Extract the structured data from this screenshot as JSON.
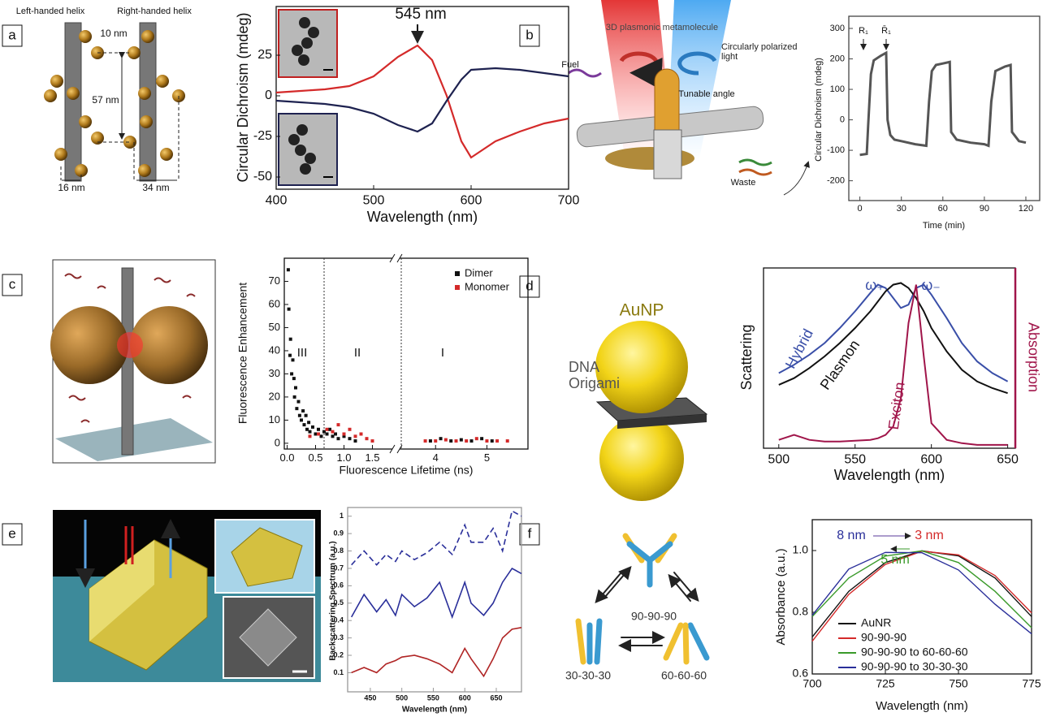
{
  "panels": [
    {
      "label": "a",
      "texts": [
        "Left-handed helix",
        "Right-handed helix",
        "10 nm",
        "57 nm",
        "16 nm",
        "34 nm"
      ]
    },
    {
      "label": "b",
      "texts": [
        "3D plasmonic metamolecule",
        "Circularly polarized light",
        "Fuel",
        "Tunable angle",
        "Waste"
      ]
    },
    {
      "label": "c",
      "texts": []
    },
    {
      "label": "d",
      "texts": [
        "AuNP",
        "DNA Origami"
      ]
    },
    {
      "label": "e",
      "texts": []
    },
    {
      "label": "f",
      "texts": [
        "90-90-90",
        "30-30-30",
        "60-60-60"
      ]
    }
  ],
  "chart_data": [
    {
      "type": "line",
      "x": [
        400,
        425,
        450,
        475,
        500,
        525,
        545,
        560,
        575,
        590,
        600,
        625,
        650,
        675,
        700
      ],
      "series": [
        {
          "color": "#d42a2a",
          "values": [
            2,
            3,
            4,
            6,
            12,
            24,
            31,
            22,
            0,
            -28,
            -38,
            -28,
            -22,
            -17,
            -14
          ]
        },
        {
          "color": "#1e2250",
          "values": [
            -3,
            -4,
            -5,
            -7,
            -11,
            -18,
            -22,
            -17,
            -3,
            10,
            16,
            17,
            16,
            14,
            12
          ]
        }
      ],
      "xlim": [
        400,
        700
      ],
      "ylim": [
        -57.5,
        55
      ],
      "xticks": [
        400,
        500,
        600,
        700
      ],
      "yticks": [
        -50,
        -25,
        0,
        25
      ],
      "xlabel": "Wavelength (nm)",
      "ylabel": "Circular Dichroism (mdeg)",
      "annotations": [
        "545 nm"
      ]
    },
    {
      "type": "line",
      "x": [
        0,
        5,
        6,
        8,
        10,
        15,
        19,
        20,
        22,
        25,
        30,
        40,
        48,
        50,
        52,
        55,
        60,
        65,
        66,
        70,
        80,
        90,
        93,
        95,
        98,
        105,
        109,
        110,
        115,
        120
      ],
      "series": [
        {
          "color": "#555555",
          "values": [
            -115,
            -112,
            -20,
            150,
            195,
            210,
            220,
            0,
            -50,
            -65,
            -70,
            -80,
            -85,
            60,
            160,
            180,
            185,
            190,
            -40,
            -65,
            -75,
            -80,
            -85,
            60,
            160,
            175,
            180,
            -40,
            -70,
            -75
          ]
        }
      ],
      "xlim": [
        -8,
        130
      ],
      "ylim": [
        -265,
        340
      ],
      "xticks": [
        0,
        30,
        60,
        90,
        120
      ],
      "yticks": [
        -200,
        -100,
        0,
        100,
        200,
        300
      ],
      "xlabel": "Time (min)",
      "ylabel": "Circular Dichroism (mdeg)",
      "annotations": [
        "R₁",
        "R̄₁"
      ]
    },
    {
      "type": "scatter",
      "series": [
        {
          "name": "Dimer",
          "color": "#111111",
          "x": [
            0.02,
            0.03,
            0.05,
            0.06,
            0.08,
            0.1,
            0.12,
            0.13,
            0.15,
            0.17,
            0.2,
            0.22,
            0.25,
            0.28,
            0.3,
            0.33,
            0.35,
            0.38,
            0.4,
            0.45,
            0.5,
            0.55,
            0.6,
            0.65,
            0.7,
            0.75,
            0.8,
            0.85,
            0.9,
            1.0,
            1.1,
            1.2,
            3.9,
            4.1,
            4.3,
            4.5,
            4.7,
            4.9,
            5.1
          ],
          "values": [
            75,
            58,
            38,
            45,
            30,
            36,
            28,
            20,
            24,
            15,
            18,
            12,
            10,
            14,
            8,
            12,
            6,
            9,
            5,
            7,
            4,
            6,
            3,
            5,
            4,
            6,
            3,
            4,
            2,
            3,
            2,
            1,
            1,
            2,
            1,
            1.5,
            1,
            2,
            1
          ]
        },
        {
          "name": "Monomer",
          "color": "#d42a2a",
          "x": [
            0.4,
            0.55,
            0.7,
            0.8,
            0.9,
            1.0,
            1.1,
            1.2,
            1.3,
            1.4,
            1.5,
            3.8,
            4.0,
            4.2,
            4.4,
            4.6,
            4.8,
            5.0,
            5.2,
            5.4
          ],
          "values": [
            3,
            4,
            6,
            5,
            8,
            4,
            6,
            3,
            4,
            2,
            1,
            1,
            1,
            1.5,
            1,
            1,
            2,
            1,
            1,
            1
          ]
        }
      ],
      "xlim": [
        -0.05,
        5.8
      ],
      "xbreak": [
        1.85,
        3.3
      ],
      "ylim": [
        -2.5,
        80
      ],
      "xticks": [
        {
          "value": 0,
          "label": "0.0"
        },
        0.5,
        {
          "value": 1,
          "label": "1.0"
        },
        1.5,
        4,
        5
      ],
      "yticks": [
        0,
        10,
        20,
        30,
        40,
        50,
        60,
        70
      ],
      "xlabel": "Fluorescence Lifetime (ns)",
      "ylabel": "Fluorescence Enhancement",
      "regions": [
        "III",
        "II",
        "I"
      ],
      "legend": "upper right"
    },
    {
      "type": "line",
      "x": [
        500,
        510,
        520,
        530,
        540,
        550,
        560,
        565,
        570,
        575,
        580,
        585,
        590,
        595,
        600,
        610,
        620,
        630,
        640,
        650
      ],
      "series": [
        {
          "name": "Hybrid",
          "color": "#3a4fa8",
          "values": [
            0.45,
            0.5,
            0.56,
            0.63,
            0.72,
            0.82,
            0.93,
            0.98,
            0.96,
            0.9,
            0.84,
            0.86,
            0.96,
            0.98,
            0.92,
            0.78,
            0.63,
            0.52,
            0.45,
            0.4
          ]
        },
        {
          "name": "Plasmon",
          "color": "#111111",
          "values": [
            0.38,
            0.42,
            0.48,
            0.55,
            0.63,
            0.72,
            0.82,
            0.88,
            0.94,
            0.98,
            0.99,
            0.96,
            0.9,
            0.82,
            0.72,
            0.58,
            0.47,
            0.4,
            0.36,
            0.33
          ]
        },
        {
          "name": "Exciton",
          "color": "#a0154a",
          "values": [
            0.05,
            0.08,
            0.05,
            0.04,
            0.04,
            0.045,
            0.05,
            0.06,
            0.08,
            0.13,
            0.3,
            0.75,
            0.98,
            0.55,
            0.15,
            0.05,
            0.03,
            0.02,
            0.02,
            0.02
          ]
        }
      ],
      "xlim": [
        490,
        655
      ],
      "ylim": [
        0,
        1.08
      ],
      "xticks": [
        500,
        550,
        600,
        650
      ],
      "xlabel": "Wavelength (nm)",
      "ylabel": "Scattering",
      "y2label": "Absorption",
      "annotations": [
        "ω₊",
        "ω₋"
      ]
    },
    {
      "type": "line",
      "x": [
        420,
        440,
        460,
        475,
        490,
        500,
        520,
        540,
        560,
        580,
        600,
        610,
        630,
        645,
        660,
        675,
        690
      ],
      "series": [
        {
          "color": "#2a2f9a",
          "line_style": "dashed",
          "values": [
            0.72,
            0.8,
            0.72,
            0.78,
            0.74,
            0.8,
            0.75,
            0.79,
            0.85,
            0.78,
            0.95,
            0.85,
            0.85,
            0.93,
            0.8,
            1.03,
            1.0
          ]
        },
        {
          "color": "#2a2f9a",
          "values": [
            0.42,
            0.55,
            0.45,
            0.52,
            0.43,
            0.55,
            0.48,
            0.53,
            0.62,
            0.42,
            0.62,
            0.5,
            0.43,
            0.5,
            0.62,
            0.7,
            0.67
          ]
        },
        {
          "color": "#b02525",
          "values": [
            0.1,
            0.13,
            0.1,
            0.15,
            0.17,
            0.19,
            0.2,
            0.18,
            0.15,
            0.1,
            0.24,
            0.18,
            0.08,
            0.18,
            0.3,
            0.35,
            0.36
          ]
        }
      ],
      "xlim": [
        414,
        690
      ],
      "ylim": [
        -0.01,
        1.05
      ],
      "xticks": [
        450,
        500,
        550,
        600,
        650
      ],
      "yticks": [
        0.1,
        0.2,
        0.3,
        0.4,
        0.5,
        0.6,
        0.7,
        0.8,
        0.9,
        1
      ],
      "xlabel": "Wavelength (nm)",
      "ylabel": "Backscattering Spectrum (a.u.)"
    },
    {
      "type": "line",
      "x": [
        700,
        712.5,
        725,
        737.5,
        750,
        762.5,
        775
      ],
      "series": [
        {
          "name": "AuNR",
          "color": "#111111",
          "values": [
            0.72,
            0.868,
            0.961,
            0.999,
            0.983,
            0.911,
            0.786
          ]
        },
        {
          "name": "90-90-90",
          "color": "#d42a2a",
          "values": [
            0.706,
            0.858,
            0.955,
            0.998,
            0.986,
            0.919,
            0.798
          ]
        },
        {
          "name": "90-90-90 to 60-60-60",
          "color": "#3a9a2a",
          "values": [
            0.786,
            0.911,
            0.982,
            0.999,
            0.961,
            0.868,
            0.75
          ]
        },
        {
          "name": "90-90-90 to 30-30-30",
          "color": "#2a2f9a",
          "values": [
            0.79,
            0.94,
            0.994,
            0.993,
            0.937,
            0.826,
            0.73
          ]
        }
      ],
      "xlim": [
        700,
        775
      ],
      "ylim": [
        0.6,
        1.1
      ],
      "xticks": [
        700,
        725,
        750,
        775
      ],
      "yticks": [
        0.6,
        0.8,
        {
          "value": 1,
          "label": "1.0"
        }
      ],
      "xlabel": "Wavelength (nm)",
      "ylabel": "Absorbance (a.u.)",
      "annotations": [
        "8 nm",
        "3 nm",
        "5 nm"
      ],
      "legend": "lower center"
    }
  ]
}
